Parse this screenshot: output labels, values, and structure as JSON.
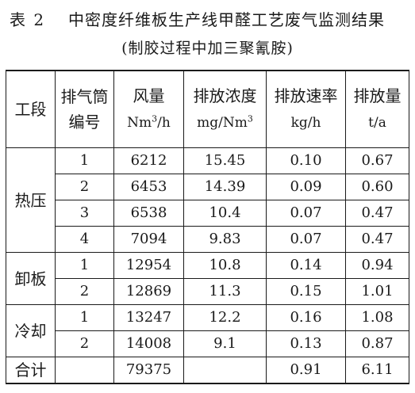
{
  "caption": {
    "label": "表 2",
    "title": "中密度纤维板生产线甲醛工艺废气监测结果",
    "subtitle": "(制胶过程中加三聚氰胺)"
  },
  "headers": {
    "segment": "工段",
    "stack_line1": "排气筒",
    "stack_line2": "编号",
    "flow_line1": "风量",
    "flow_unit_base": "Nm",
    "flow_unit_sup": "3",
    "flow_unit_tail": "/h",
    "conc_line1": "排放浓度",
    "conc_unit_base": "mg/Nm",
    "conc_unit_sup": "3",
    "rate_line1": "排放速率",
    "rate_unit": "kg/h",
    "amount_line1": "排放量",
    "amount_unit": "t/a"
  },
  "groups": [
    {
      "segment": "热压",
      "rows": [
        {
          "stack": "1",
          "flow": "6212",
          "conc": "15.45",
          "rate": "0.10",
          "amount": "0.67"
        },
        {
          "stack": "2",
          "flow": "6453",
          "conc": "14.39",
          "rate": "0.09",
          "amount": "0.60"
        },
        {
          "stack": "3",
          "flow": "6538",
          "conc": "10.4",
          "rate": "0.07",
          "amount": "0.47"
        },
        {
          "stack": "4",
          "flow": "7094",
          "conc": "9.83",
          "rate": "0.07",
          "amount": "0.47"
        }
      ]
    },
    {
      "segment": "卸板",
      "rows": [
        {
          "stack": "1",
          "flow": "12954",
          "conc": "10.8",
          "rate": "0.14",
          "amount": "0.94"
        },
        {
          "stack": "2",
          "flow": "12869",
          "conc": "11.3",
          "rate": "0.15",
          "amount": "1.01"
        }
      ]
    },
    {
      "segment": "冷却",
      "rows": [
        {
          "stack": "1",
          "flow": "13247",
          "conc": "12.2",
          "rate": "0.16",
          "amount": "1.08"
        },
        {
          "stack": "2",
          "flow": "14008",
          "conc": "9.1",
          "rate": "0.13",
          "amount": "0.87"
        }
      ]
    }
  ],
  "total": {
    "label": "合计",
    "flow": "79375",
    "rate": "0.91",
    "amount": "6.11"
  }
}
